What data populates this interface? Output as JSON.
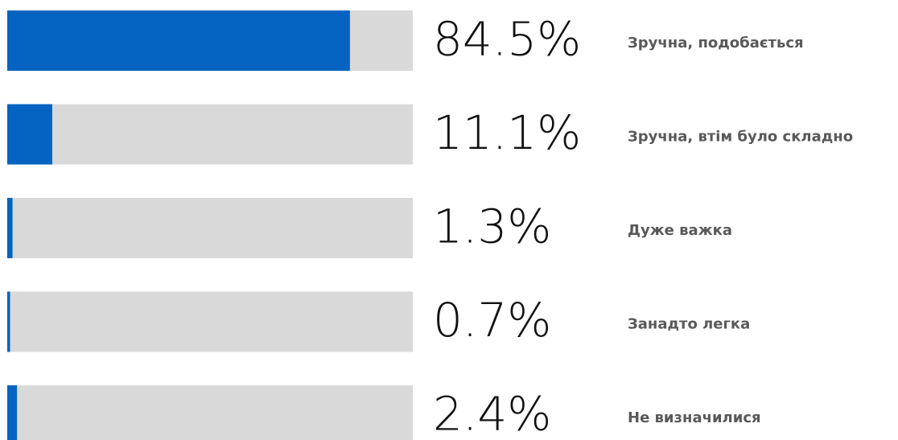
{
  "chart_data": {
    "type": "bar",
    "orientation": "horizontal",
    "categories": [
      "Зручна, подобається",
      "Зручна, втім було складно",
      "Дуже важка",
      "Занадто легка",
      "Не визначилися"
    ],
    "values": [
      84.5,
      11.1,
      1.3,
      0.7,
      2.4
    ],
    "value_labels": [
      "84.5%",
      "11.1%",
      "1.3%",
      "0.7%",
      "2.4%"
    ],
    "xlim": [
      0,
      100
    ],
    "color": "#0563c1",
    "track_color": "#d9d9d9"
  }
}
